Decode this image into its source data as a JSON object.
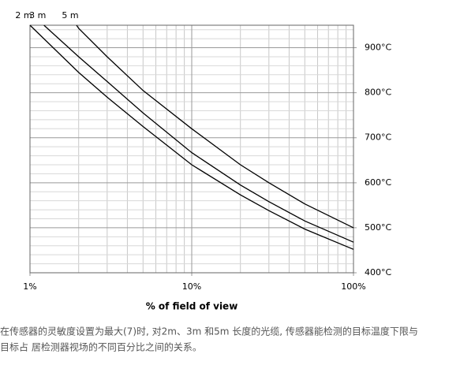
{
  "chart_data": {
    "type": "line",
    "xlabel": "% of field of view",
    "xlog": true,
    "grid": true,
    "xlim": [
      1,
      100
    ],
    "ylim": [
      400,
      950
    ],
    "xticks": [
      {
        "value": 1,
        "label": "1%"
      },
      {
        "value": 10,
        "label": "10%"
      },
      {
        "value": 100,
        "label": "100%"
      }
    ],
    "yticks": [
      {
        "value": 400,
        "label": "400°C"
      },
      {
        "value": 500,
        "label": "500°C"
      },
      {
        "value": 600,
        "label": "600°C"
      },
      {
        "value": 700,
        "label": "700°C"
      },
      {
        "value": 800,
        "label": "800°C"
      },
      {
        "value": 900,
        "label": "900°C"
      }
    ],
    "x_minor_grid": [
      2,
      3,
      4,
      5,
      6,
      7,
      8,
      9,
      20,
      30,
      40,
      50,
      60,
      70,
      80,
      90
    ],
    "y_minor_grid": [
      420,
      440,
      460,
      480,
      520,
      540,
      560,
      580,
      620,
      640,
      660,
      680,
      720,
      740,
      760,
      780,
      820,
      840,
      860,
      880,
      920,
      940
    ],
    "series": [
      {
        "name": "2 m",
        "color": "#000000",
        "x": [
          1,
          2,
          3,
          5,
          10,
          20,
          30,
          50,
          100
        ],
        "values": [
          950,
          845,
          790,
          725,
          640,
          573,
          538,
          497,
          452
        ]
      },
      {
        "name": "3 m",
        "color": "#000000",
        "x": [
          1.22,
          2,
          3,
          5,
          10,
          20,
          30,
          50,
          100
        ],
        "values": [
          950,
          880,
          825,
          755,
          667,
          595,
          558,
          515,
          468
        ]
      },
      {
        "name": "5 m",
        "color": "#000000",
        "x": [
          1.94,
          2,
          3,
          5,
          10,
          20,
          30,
          50,
          100
        ],
        "values": [
          950,
          943,
          880,
          805,
          720,
          640,
          600,
          553,
          500
        ]
      }
    ]
  },
  "caption": [
    "在传感器的灵敏度设置为最大(7)时, 对2m、3m 和5m 长度的光缆, 传感器能检测的目标温度下限与",
    "目标占 居检测器视场的不同百分比之间的关系。"
  ]
}
